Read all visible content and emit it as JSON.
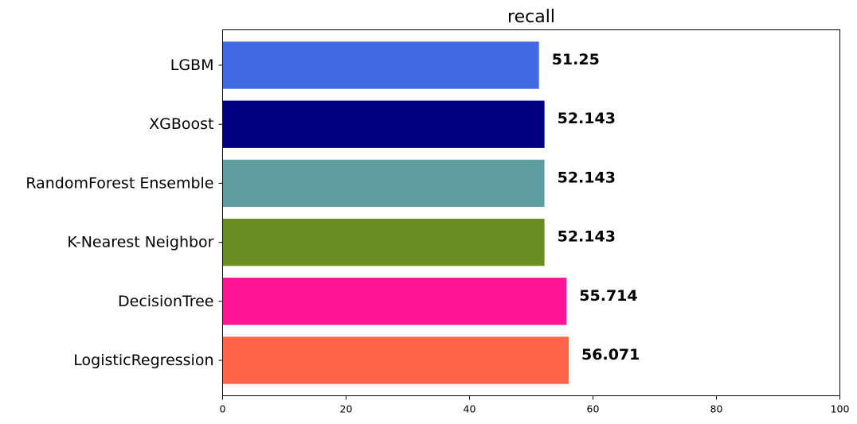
{
  "chart_data": {
    "type": "bar",
    "orientation": "horizontal",
    "title": "recall",
    "categories": [
      "LogisticRegression",
      "DecisionTree",
      "K-Nearest Neighbor",
      "RandomForest Ensemble",
      "XGBoost",
      "LGBM"
    ],
    "values": [
      56.071,
      55.714,
      52.143,
      52.143,
      52.143,
      51.25
    ],
    "value_labels": [
      "56.071",
      "55.714",
      "52.143",
      "52.143",
      "52.143",
      "51.25"
    ],
    "colors": [
      "#ff6347",
      "#ff1493",
      "#6b8e23",
      "#5f9ea0",
      "#000080",
      "#4169e1"
    ],
    "xlim": [
      0,
      100
    ],
    "xticks": [
      "0",
      "20",
      "40",
      "60",
      "80",
      "100"
    ],
    "xlabel": "",
    "ylabel": "",
    "grid": false
  }
}
